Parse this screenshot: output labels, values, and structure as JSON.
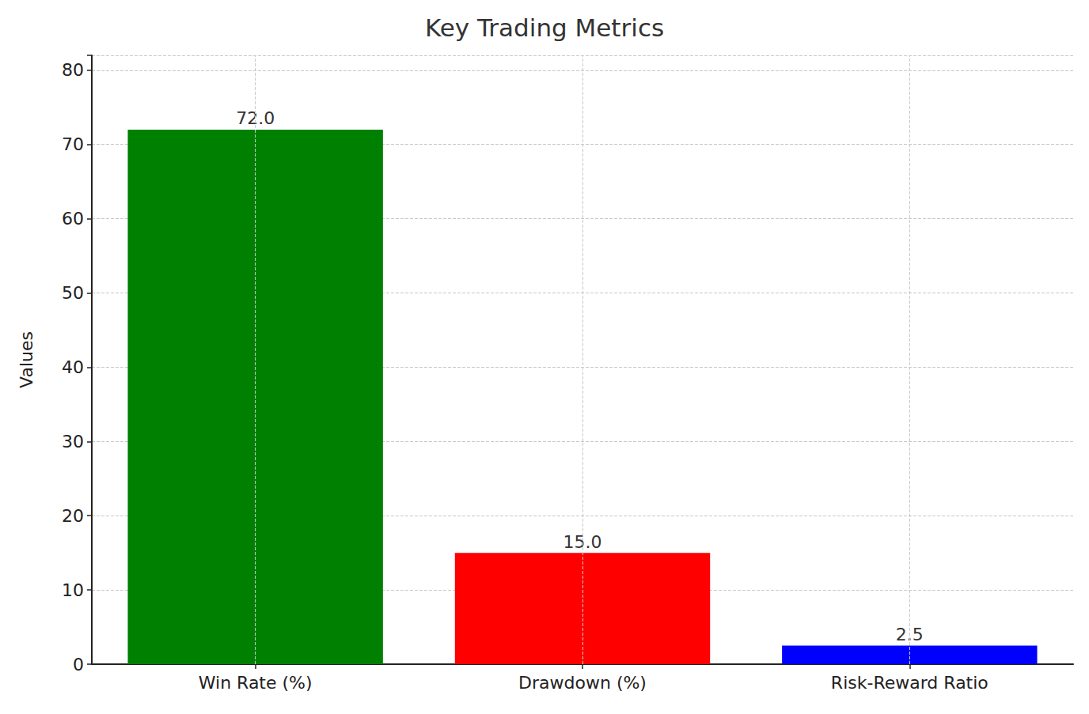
{
  "chart_data": {
    "type": "bar",
    "title": "Key Trading Metrics",
    "ylabel": "Values",
    "categories": [
      "Win Rate (%)",
      "Drawdown (%)",
      "Risk-Reward Ratio"
    ],
    "values": [
      72,
      15,
      2.5
    ],
    "value_labels": [
      "72.0",
      "15.0",
      "2.5"
    ],
    "colors": [
      "#008000",
      "#ff0000",
      "#0000ff"
    ],
    "ylim": [
      0,
      82
    ],
    "yticks": [
      0,
      10,
      20,
      30,
      40,
      50,
      60,
      70,
      80
    ],
    "grid": true,
    "data_labels": true
  }
}
